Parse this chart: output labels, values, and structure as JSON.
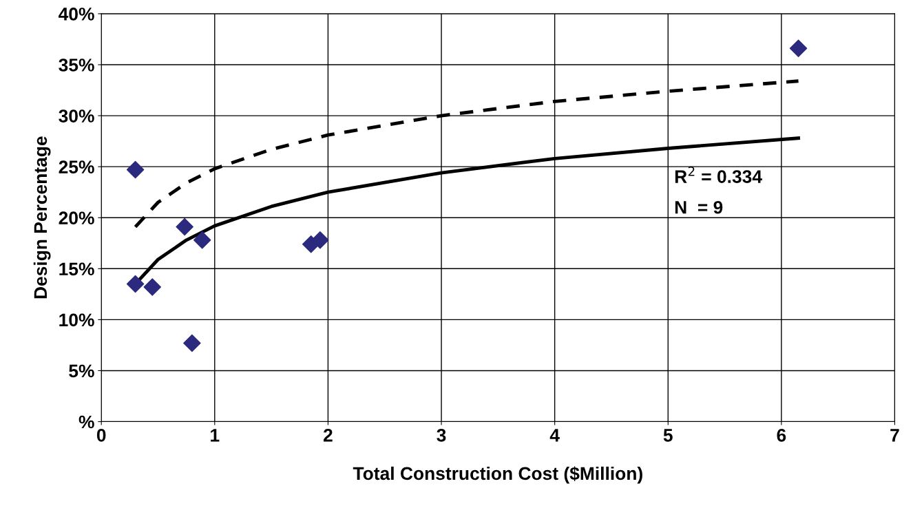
{
  "chart_data": {
    "type": "scatter",
    "xlabel": "Total Construction Cost ($Million)",
    "ylabel": "Design Percentage",
    "xlim": [
      0,
      7
    ],
    "xticks": [
      0,
      1,
      2,
      3,
      4,
      5,
      6,
      7
    ],
    "ylim": [
      0,
      40
    ],
    "yticks": [
      {
        "value": 0,
        "label": "%"
      },
      {
        "value": 5,
        "label": "5%"
      },
      {
        "value": 10,
        "label": "10%"
      },
      {
        "value": 15,
        "label": "15%"
      },
      {
        "value": 20,
        "label": "20%"
      },
      {
        "value": 25,
        "label": "25%"
      },
      {
        "value": 30,
        "label": "30%"
      },
      {
        "value": 35,
        "label": "35%"
      },
      {
        "value": 40,
        "label": "40%"
      }
    ],
    "grid": true,
    "marker": "diamond",
    "series": [
      {
        "color": "#2b2a7e",
        "x": [
          0.3,
          0.3,
          0.45,
          0.735,
          0.8,
          0.89,
          1.85,
          1.93,
          6.15
        ],
        "values": [
          24.7,
          13.5,
          13.2,
          19.1,
          7.7,
          17.8,
          17.4,
          17.8,
          36.6
        ]
      },
      {
        "type": "line",
        "color": "#000000",
        "line_style": "solid",
        "marker": "none",
        "x": [
          0.3,
          0.5,
          0.75,
          1,
          1.5,
          2,
          3,
          4,
          5,
          6.15
        ],
        "values": [
          13.5,
          15.9,
          17.8,
          19.2,
          21.1,
          22.5,
          24.4,
          25.8,
          26.8,
          27.8
        ]
      },
      {
        "type": "line",
        "color": "#000000",
        "line_style": "dashed",
        "marker": "none",
        "x": [
          0.3,
          0.5,
          0.75,
          1,
          1.5,
          2,
          3,
          4,
          5,
          6.15
        ],
        "values": [
          19.1,
          21.5,
          23.4,
          24.8,
          26.7,
          28.1,
          30.0,
          31.4,
          32.4,
          33.4
        ]
      }
    ],
    "annotations": [
      "R$^{2}$ = 0.334",
      "N  = 9"
    ]
  }
}
